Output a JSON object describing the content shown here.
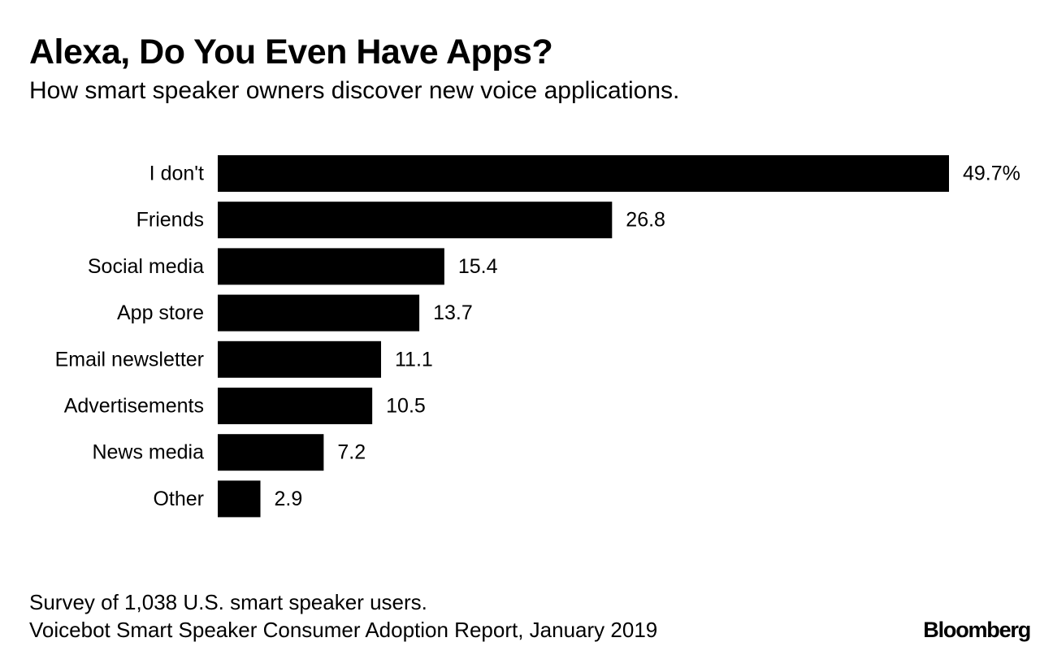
{
  "title": "Alexa, Do You Even Have Apps?",
  "subtitle": "How smart speaker owners discover new voice applications.",
  "footer": {
    "note": "Survey of 1,038 U.S. smart speaker users.",
    "source": "Voicebot Smart Speaker Consumer Adoption Report, January 2019",
    "logo": "Bloomberg"
  },
  "colors": {
    "bar": "#000000",
    "text": "#000000",
    "background": "#ffffff"
  },
  "chart_data": {
    "type": "bar",
    "orientation": "horizontal",
    "title": "Alexa, Do You Even Have Apps?",
    "subtitle": "How smart speaker owners discover new voice applications.",
    "xlabel": "",
    "ylabel": "",
    "unit": "%",
    "xlim": [
      0,
      49.7
    ],
    "grid": false,
    "legend": "none",
    "categories": [
      "I don't",
      "Friends",
      "Social media",
      "App store",
      "Email newsletter",
      "Advertisements",
      "News media",
      "Other"
    ],
    "values": [
      49.7,
      26.8,
      15.4,
      13.7,
      11.1,
      10.5,
      7.2,
      2.9
    ],
    "value_labels": [
      "49.7%",
      "26.8",
      "15.4",
      "13.7",
      "11.1",
      "10.5",
      "7.2",
      "2.9"
    ]
  }
}
